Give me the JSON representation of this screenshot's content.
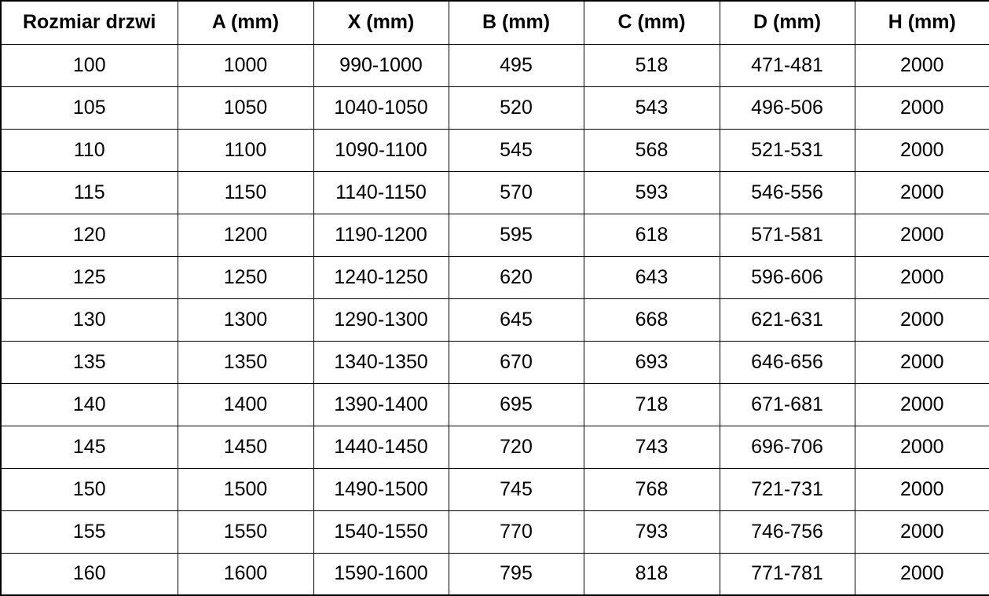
{
  "table": {
    "columns": [
      "Rozmiar drzwi",
      "A (mm)",
      "X (mm)",
      "B (mm)",
      "C (mm)",
      "D (mm)",
      "H (mm)"
    ],
    "rows": [
      [
        "100",
        "1000",
        "990-1000",
        "495",
        "518",
        "471-481",
        "2000"
      ],
      [
        "105",
        "1050",
        "1040-1050",
        "520",
        "543",
        "496-506",
        "2000"
      ],
      [
        "110",
        "1100",
        "1090-1100",
        "545",
        "568",
        "521-531",
        "2000"
      ],
      [
        "115",
        "1150",
        "1140-1150",
        "570",
        "593",
        "546-556",
        "2000"
      ],
      [
        "120",
        "1200",
        "1190-1200",
        "595",
        "618",
        "571-581",
        "2000"
      ],
      [
        "125",
        "1250",
        "1240-1250",
        "620",
        "643",
        "596-606",
        "2000"
      ],
      [
        "130",
        "1300",
        "1290-1300",
        "645",
        "668",
        "621-631",
        "2000"
      ],
      [
        "135",
        "1350",
        "1340-1350",
        "670",
        "693",
        "646-656",
        "2000"
      ],
      [
        "140",
        "1400",
        "1390-1400",
        "695",
        "718",
        "671-681",
        "2000"
      ],
      [
        "145",
        "1450",
        "1440-1450",
        "720",
        "743",
        "696-706",
        "2000"
      ],
      [
        "150",
        "1500",
        "1490-1500",
        "745",
        "768",
        "721-731",
        "2000"
      ],
      [
        "155",
        "1550",
        "1540-1550",
        "770",
        "793",
        "746-756",
        "2000"
      ],
      [
        "160",
        "1600",
        "1590-1600",
        "795",
        "818",
        "771-781",
        "2000"
      ]
    ],
    "colors": {
      "border": "#000000",
      "background": "#ffffff",
      "text": "#000000"
    }
  }
}
